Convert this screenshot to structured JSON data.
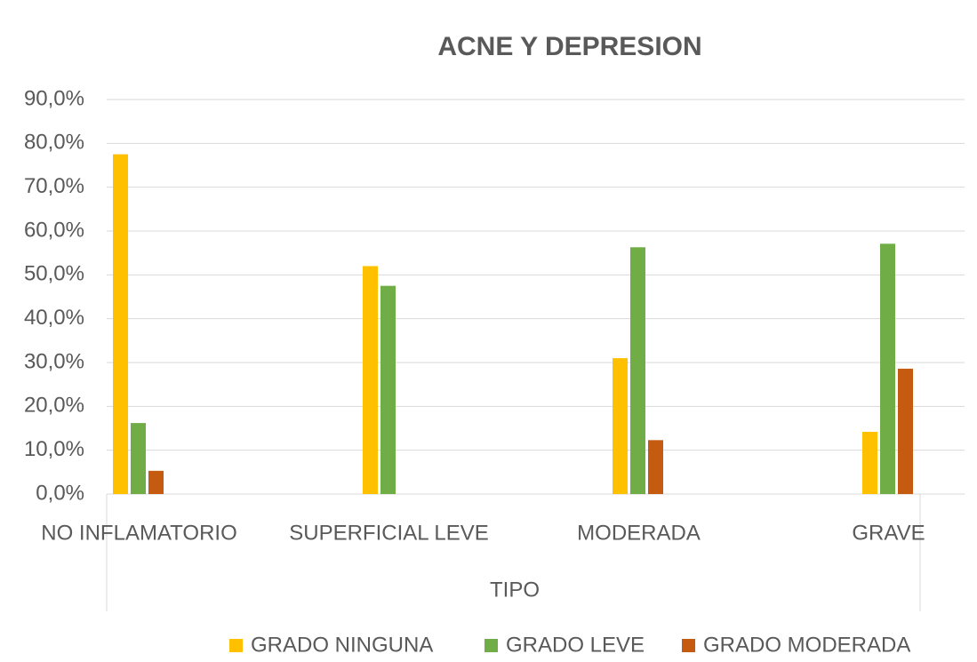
{
  "chart_data": {
    "type": "bar",
    "title": "ACNE Y DEPRESION",
    "x_label": "TIPO",
    "categories": [
      "NO INFLAMATORIO",
      "SUPERFICIAL LEVE",
      "MODERADA",
      "GRAVE"
    ],
    "series": [
      {
        "name": "GRADO NINGUNA",
        "color": "#ffc000",
        "values": [
          77.5,
          52,
          31,
          14.2
        ]
      },
      {
        "name": "GRADO LEVE",
        "color": "#70ad47",
        "values": [
          16.2,
          47.5,
          56.3,
          57.1
        ]
      },
      {
        "name": "GRADO MODERADA",
        "color": "#c55a11",
        "values": [
          5.3,
          0,
          12.3,
          28.6
        ]
      }
    ],
    "ylim": [
      0,
      90
    ],
    "yticks": [
      {
        "value": 0,
        "label": "0,0%"
      },
      {
        "value": 10,
        "label": "10,0%"
      },
      {
        "value": 20,
        "label": "20,0%"
      },
      {
        "value": 30,
        "label": "30,0%"
      },
      {
        "value": 40,
        "label": "40,0%"
      },
      {
        "value": 50,
        "label": "50,0%"
      },
      {
        "value": 60,
        "label": "60,0%"
      },
      {
        "value": 70,
        "label": "70,0%"
      },
      {
        "value": 80,
        "label": "80,0%"
      },
      {
        "value": 90,
        "label": "90,0%"
      }
    ],
    "grid": true,
    "legend": "bottom"
  }
}
